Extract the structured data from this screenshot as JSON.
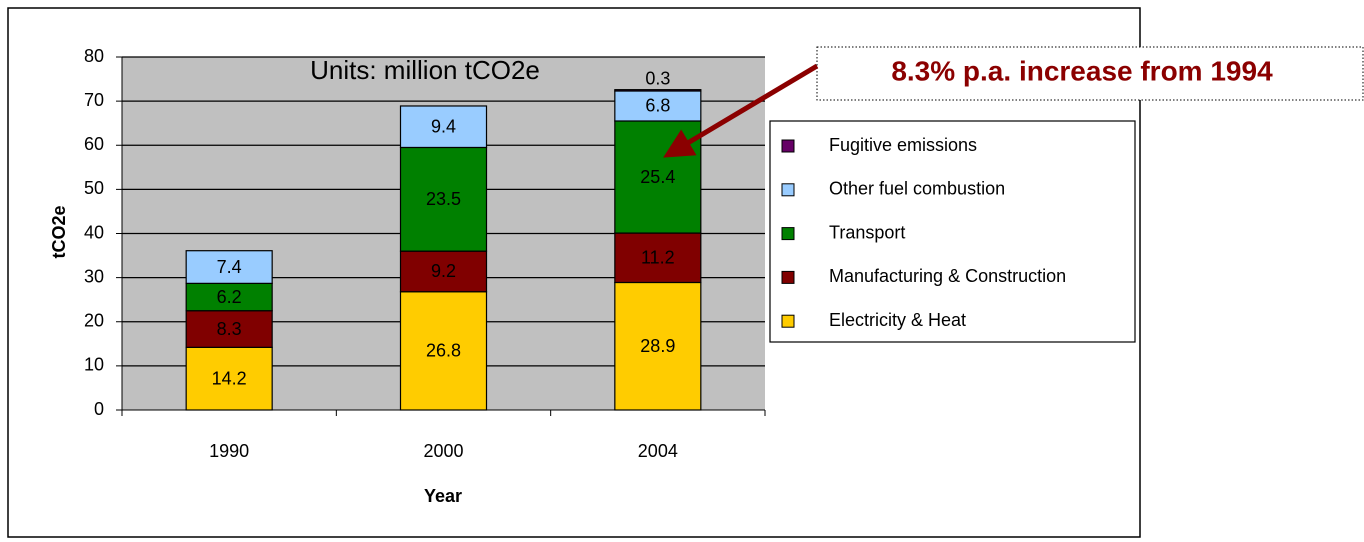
{
  "chart_data": {
    "type": "stacked_bar",
    "title": "Units: million tCO2e",
    "annotation": "8.3% p.a. increase from 1994",
    "x_label": "Year",
    "y_label": "tCO2e",
    "categories": [
      "1990",
      "2000",
      "2004"
    ],
    "series": [
      {
        "name": "Electricity & Heat",
        "color": "#ffcc00",
        "values": [
          14.2,
          26.8,
          28.9
        ]
      },
      {
        "name": "Manufacturing & Construction",
        "color": "#800000",
        "values": [
          8.3,
          9.2,
          11.2
        ]
      },
      {
        "name": "Transport",
        "color": "#008000",
        "values": [
          6.2,
          23.5,
          25.4
        ]
      },
      {
        "name": "Other fuel combustion",
        "color": "#99ccff",
        "values": [
          7.4,
          9.4,
          6.8
        ]
      },
      {
        "name": "Fugitive emissions",
        "color": "#660066",
        "values": [
          null,
          null,
          0.3
        ]
      }
    ],
    "ylim": [
      0,
      80
    ],
    "yticks": [
      0,
      10,
      20,
      30,
      40,
      50,
      60,
      70,
      80
    ],
    "grid": true,
    "legend": "right"
  }
}
